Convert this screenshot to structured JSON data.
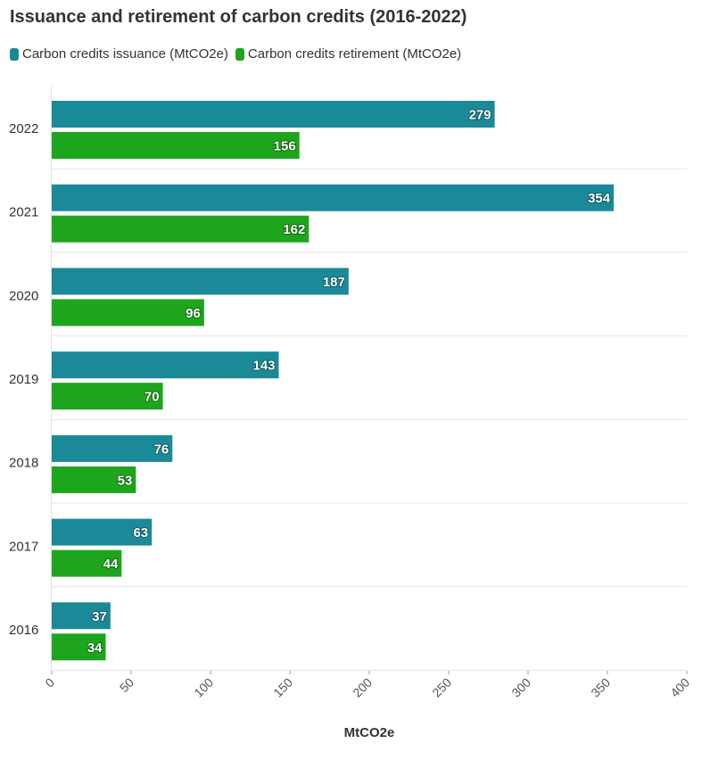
{
  "chart_data": {
    "type": "bar",
    "orientation": "horizontal",
    "title": "Issuance and retirement of carbon credits (2016-2022)",
    "categories": [
      "2022",
      "2021",
      "2020",
      "2019",
      "2018",
      "2017",
      "2016"
    ],
    "series": [
      {
        "name": "Carbon credits issuance (MtCO2e)",
        "color": "#1b8a98",
        "values": [
          279,
          354,
          187,
          143,
          76,
          63,
          37
        ]
      },
      {
        "name": "Carbon credits retirement (MtCO2e)",
        "color": "#1ea51e",
        "values": [
          156,
          162,
          96,
          70,
          53,
          44,
          34
        ]
      }
    ],
    "xlabel": "MtCO2e",
    "ylabel": "",
    "xlim": [
      0,
      400
    ],
    "xticks": [
      0,
      50,
      100,
      150,
      200,
      250,
      300,
      350,
      400
    ],
    "grid": true,
    "legend_position": "top-left"
  }
}
